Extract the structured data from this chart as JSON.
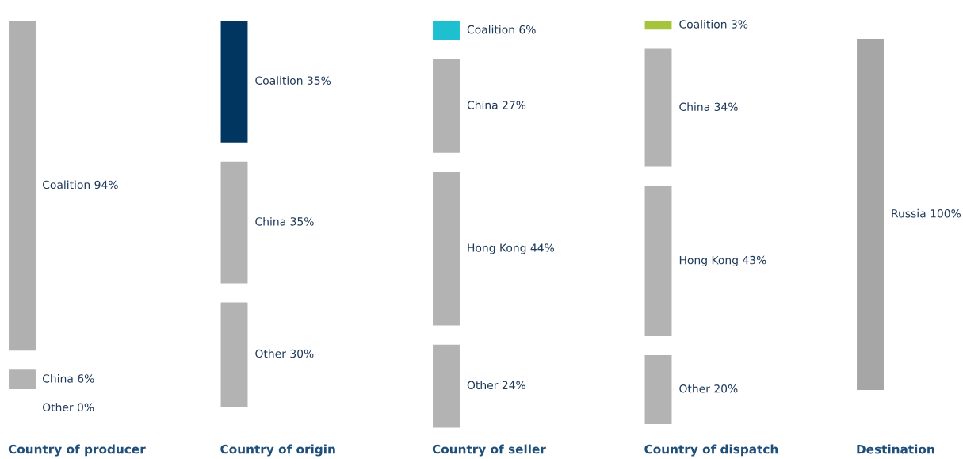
{
  "chart_data": {
    "type": "other",
    "categories": [
      "Country of producer",
      "Country of origin",
      "Country of seller",
      "Country of dispatch",
      "Destination"
    ],
    "series": [
      {
        "values": [
          94,
          35,
          6,
          3,
          null
        ],
        "value_labels": [
          "Coalition 94%",
          "Coalition 35%",
          "Coalition 6%",
          "Coalition 3%",
          null
        ],
        "colors": [
          "#b0b0b0",
          "#003660",
          "#1ebfcf",
          "#a5c43c",
          null
        ]
      },
      {
        "values": [
          6,
          35,
          27,
          34,
          null
        ],
        "value_labels": [
          "China 6%",
          "China 35%",
          "China 27%",
          "China 34%",
          null
        ],
        "colors": [
          "#b3b3b3",
          "#b3b3b3",
          "#b3b3b3",
          "#b3b3b3",
          null
        ]
      },
      {
        "values": [
          null,
          null,
          44,
          43,
          null
        ],
        "value_labels": [
          null,
          null,
          "Hong Kong 44%",
          "Hong Kong 43%",
          null
        ],
        "colors": [
          null,
          null,
          "#b3b3b3",
          "#b3b3b3",
          null
        ]
      },
      {
        "values": [
          0,
          30,
          24,
          20,
          null
        ],
        "value_labels": [
          "Other 0%",
          "Other 30%",
          "Other 24%",
          "Other 20%",
          null
        ],
        "colors": [
          "#b3b3b3",
          "#b3b3b3",
          "#b3b3b3",
          "#b3b3b3",
          null
        ]
      },
      {
        "values": [
          null,
          null,
          null,
          null,
          100
        ],
        "value_labels": [
          null,
          null,
          null,
          null,
          "Russia 100%"
        ],
        "colors": [
          null,
          null,
          null,
          null,
          "#a6a6a6"
        ]
      }
    ]
  }
}
